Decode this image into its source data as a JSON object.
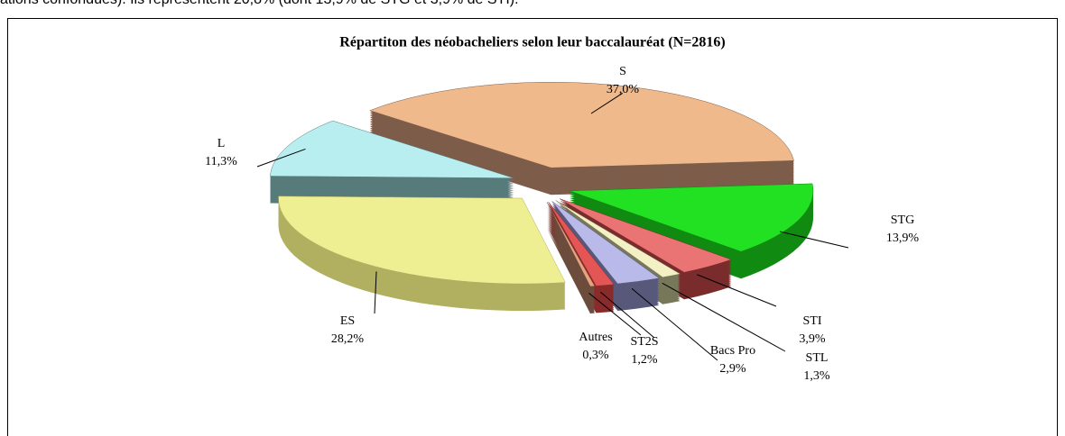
{
  "intro_text": "ations confondues). Ils représentent 20,8% (dont 13,9% de STG et 3,9% de STI).",
  "chart_data": {
    "type": "pie",
    "title": "Répartiton des néobacheliers selon leur baccalauréat (N=2816)",
    "categories": [
      "S",
      "STG",
      "STI",
      "STL",
      "Bacs Pro",
      "ST2S",
      "Autres",
      "ES",
      "L"
    ],
    "values": [
      37.0,
      13.9,
      3.9,
      1.3,
      2.9,
      1.2,
      0.3,
      28.2,
      11.3
    ],
    "value_labels": [
      "37,0%",
      "13,9%",
      "3,9%",
      "1,3%",
      "2,9%",
      "1,2%",
      "0,3%",
      "28,2%",
      "11,3%"
    ],
    "colors": [
      "#efb98c",
      "#22e022",
      "#ea7474",
      "#f4f0c6",
      "#b9b9ea",
      "#e45656",
      "#e9a27e",
      "#eeee92",
      "#b9eef0"
    ],
    "side_colors": [
      "#7d5c4a",
      "#118a11",
      "#7a2c2c",
      "#77775a",
      "#58587a",
      "#8a2a2a",
      "#6c4c3c",
      "#b0b060",
      "#577a7a"
    ]
  }
}
